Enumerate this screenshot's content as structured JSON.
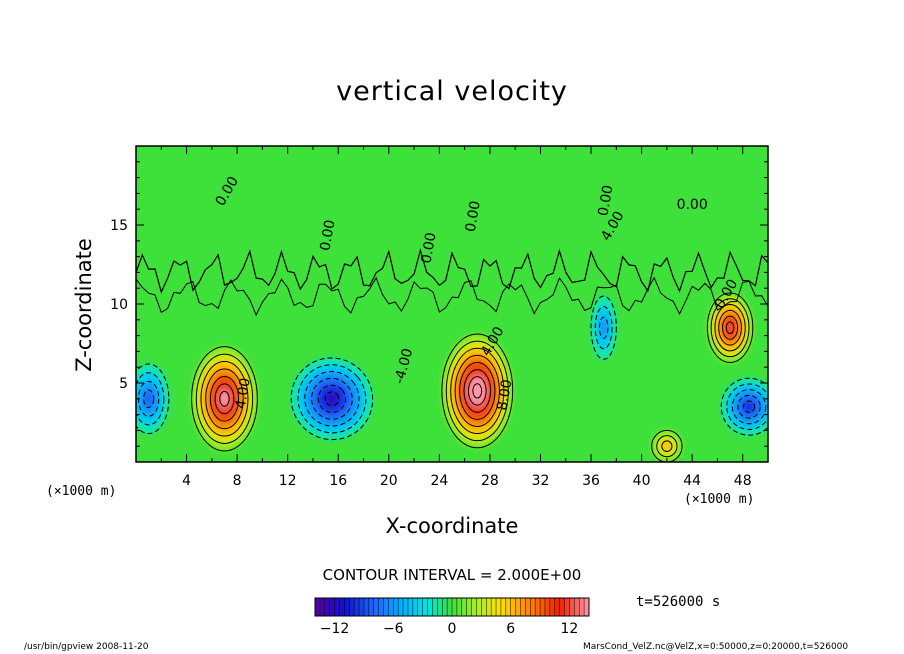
{
  "chart_data": {
    "type": "heatmap",
    "title": "vertical velocity",
    "xlabel": "X-coordinate",
    "ylabel": "Z-coordinate",
    "x_unit_label": "(×1000 m)",
    "xlim": [
      0,
      50
    ],
    "ylim": [
      0,
      20
    ],
    "x_ticks": [
      4,
      8,
      12,
      16,
      20,
      24,
      28,
      32,
      36,
      40,
      44,
      48
    ],
    "y_ticks": [
      5,
      10,
      15
    ],
    "contour_interval_text": "CONTOUR INTERVAL = 2.000E+00",
    "contour_labels": [
      "0.00",
      "0.00",
      "0.00",
      "0.00",
      "0.00",
      "0.00",
      "4.00",
      "-4.00",
      "4.00",
      "8.00",
      "4.00",
      "0.00"
    ],
    "colorbar": {
      "range": [
        -14,
        14
      ],
      "ticks": [
        -12,
        -6,
        0,
        6,
        12
      ],
      "colors": {
        "min": "#5500aa",
        "low": "#0000cc",
        "mid_low": "#00c8ff",
        "zero": "#40e040",
        "mid_high": "#ffe000",
        "high": "#ff2000",
        "max": "#ff90a0"
      }
    },
    "features": [
      {
        "type": "updraft",
        "x": 7,
        "z": 4,
        "peak": 11
      },
      {
        "type": "downdraft",
        "x": 15.5,
        "z": 4,
        "peak": -9
      },
      {
        "type": "updraft",
        "x": 27,
        "z": 4.5,
        "peak": 13
      },
      {
        "type": "updraft",
        "x": 47,
        "z": 8.5,
        "peak": 9
      },
      {
        "type": "updraft",
        "x": 42,
        "z": 1,
        "peak": 4
      },
      {
        "type": "downdraft",
        "x": 48.5,
        "z": 3.5,
        "peak": -7
      },
      {
        "type": "downdraft",
        "x": 1,
        "z": 4,
        "peak": -6
      },
      {
        "type": "downdraft",
        "x": 37,
        "z": 8.5,
        "peak": -4
      }
    ],
    "time_label": "t=526000 s",
    "grid": false
  },
  "footer": {
    "left": "/usr/bin/gpview  2008-11-20",
    "right": "MarsCond_VelZ.nc@VelZ,x=0:50000,z=0:20000,t=526000"
  }
}
